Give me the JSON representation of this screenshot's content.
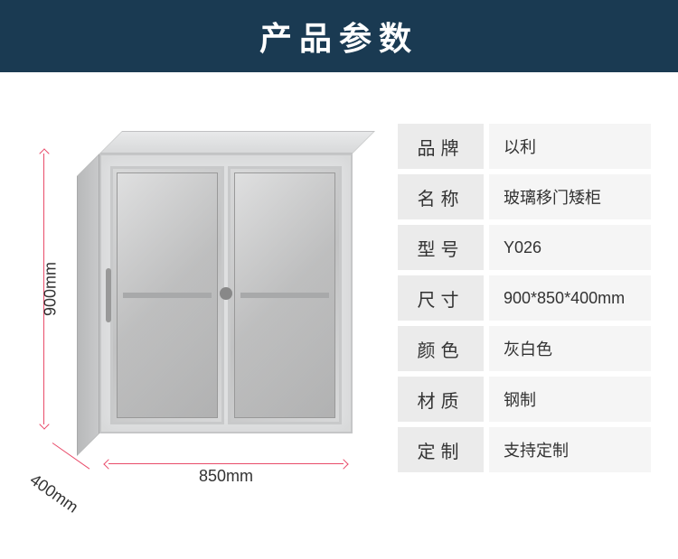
{
  "header": {
    "title": "产品参数"
  },
  "dimensions": {
    "height": "900mm",
    "depth": "400mm",
    "width": "850mm"
  },
  "specs": [
    {
      "label": "品牌",
      "value": "以利"
    },
    {
      "label": "名称",
      "value": "玻璃移门矮柜"
    },
    {
      "label": "型号",
      "value": "Y026"
    },
    {
      "label": "尺寸",
      "value": "900*850*400mm"
    },
    {
      "label": "颜色",
      "value": "灰白色"
    },
    {
      "label": "材质",
      "value": "钢制"
    },
    {
      "label": "定制",
      "value": "支持定制"
    }
  ],
  "colors": {
    "header_bg": "#1a3a52",
    "header_text": "#ffffff",
    "dimension_line": "#e94b6a",
    "spec_label_bg": "#ebebeb",
    "spec_value_bg": "#f5f5f5",
    "text": "#333333",
    "cabinet_body": "#dfe0e1"
  }
}
